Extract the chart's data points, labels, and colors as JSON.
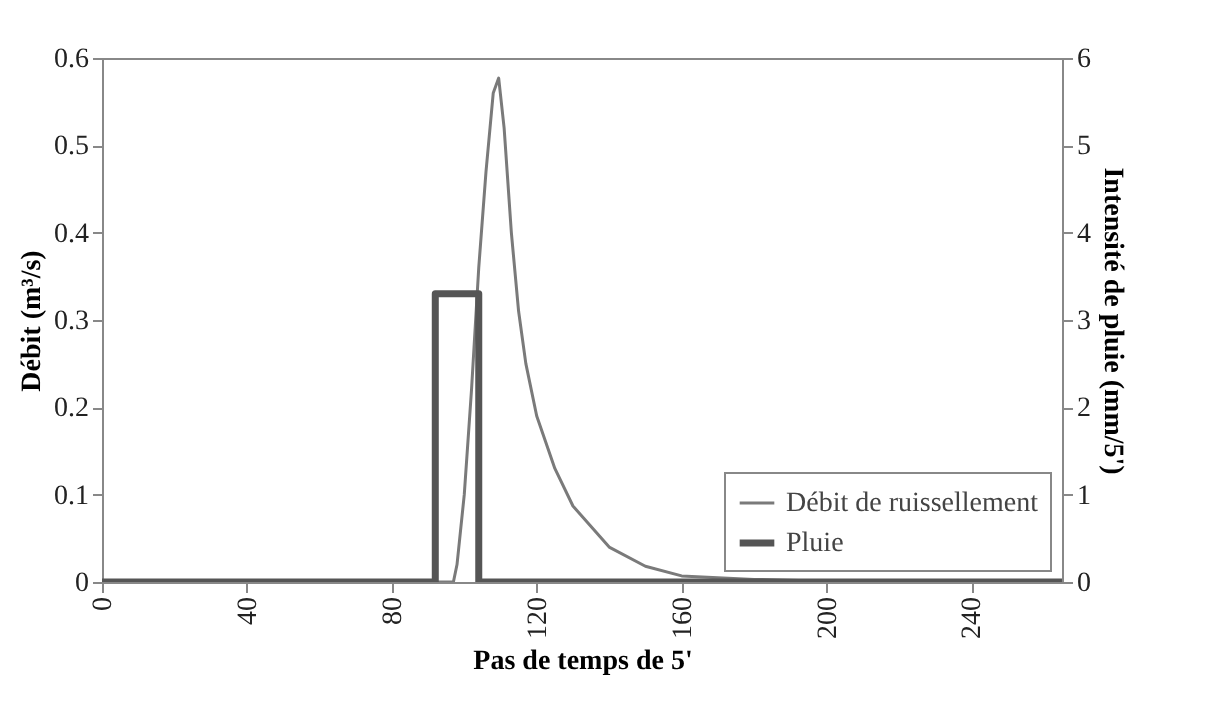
{
  "chart_data": {
    "type": "line",
    "xlabel": "Pas de temps de 5'",
    "ylabel": "Débit (m³/s)",
    "y2label": "Intensité de pluie (mm/5')",
    "xlim": [
      0,
      265
    ],
    "xticks": [
      0,
      40,
      80,
      120,
      160,
      200,
      240
    ],
    "ylim": [
      0,
      0.6
    ],
    "yticks": [
      0,
      0.1,
      0.2,
      0.3,
      0.4,
      0.5,
      0.6
    ],
    "y2lim": [
      0,
      6
    ],
    "y2ticks": [
      0,
      1,
      2,
      3,
      4,
      5,
      6
    ],
    "legend": "bottom right",
    "grid": false,
    "series": [
      {
        "name": "Débit de ruissellement",
        "color": "#7a7a7a",
        "x": [
          0,
          97,
          98,
          100,
          102,
          104,
          106,
          108,
          109.5,
          111,
          113,
          115,
          117,
          120,
          125,
          130,
          140,
          150,
          160,
          180,
          200,
          265
        ],
        "values": [
          0,
          0,
          0.02,
          0.1,
          0.22,
          0.36,
          0.47,
          0.56,
          0.577,
          0.52,
          0.4,
          0.31,
          0.25,
          0.19,
          0.13,
          0.087,
          0.04,
          0.018,
          0.007,
          0.003,
          0.001,
          0
        ]
      },
      {
        "name": "Pluie",
        "color": "#555555",
        "axis": "y2",
        "x": [
          0,
          92,
          92,
          104,
          104,
          265
        ],
        "values": [
          0,
          0,
          3.3,
          3.3,
          0,
          0
        ]
      }
    ]
  }
}
